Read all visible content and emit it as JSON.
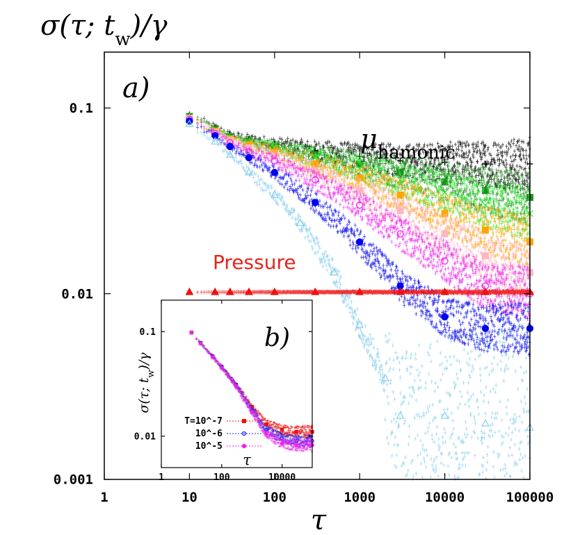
{
  "chart_data": [
    {
      "type": "scatter",
      "panel_label": "a)",
      "ylabel": "σ(τ; t_w)/γ",
      "xlabel": "τ",
      "x_scale": "log",
      "y_scale": "log",
      "xlim": [
        1,
        100000
      ],
      "ylim": [
        0.001,
        0.2
      ],
      "x_ticks": [
        1,
        10,
        100,
        1000,
        10000,
        100000
      ],
      "x_tick_labels": [
        "1",
        "10",
        "100",
        "1000",
        "10000",
        "100000"
      ],
      "y_ticks": [
        0.001,
        0.01,
        0.1
      ],
      "y_tick_labels": [
        "0.001",
        "0.01",
        "0.1"
      ],
      "annotations": [
        {
          "text_base": "μ",
          "text_sub": "hamonic",
          "color": "#000000"
        },
        {
          "text": "Pressure",
          "color": "#e8241a"
        }
      ],
      "series": [
        {
          "color": "#000000",
          "marker": "plus",
          "x": [
            10,
            20,
            30,
            50,
            100,
            300,
            1000,
            3000,
            10000,
            30000,
            100000
          ],
          "y": [
            0.092,
            0.079,
            0.072,
            0.068,
            0.064,
            0.059,
            0.055,
            0.052,
            0.051,
            0.05,
            0.05
          ]
        },
        {
          "color": "#228b22",
          "marker": "square",
          "x": [
            10,
            20,
            30,
            50,
            100,
            300,
            1000,
            3000,
            10000,
            30000,
            100000
          ],
          "y": [
            0.09,
            0.077,
            0.07,
            0.066,
            0.062,
            0.056,
            0.05,
            0.045,
            0.04,
            0.036,
            0.033
          ]
        },
        {
          "color": "#33ee33",
          "marker": "x",
          "x": [
            10,
            20,
            30,
            50,
            100,
            300,
            1000,
            3000,
            10000,
            30000,
            100000
          ],
          "y": [
            0.089,
            0.076,
            0.069,
            0.065,
            0.061,
            0.054,
            0.047,
            0.041,
            0.035,
            0.03,
            0.027
          ]
        },
        {
          "color": "#ffa500",
          "marker": "square",
          "x": [
            10,
            20,
            30,
            50,
            100,
            300,
            1000,
            3000,
            10000,
            30000,
            100000
          ],
          "y": [
            0.088,
            0.075,
            0.068,
            0.063,
            0.058,
            0.05,
            0.042,
            0.034,
            0.027,
            0.022,
            0.019
          ]
        },
        {
          "color": "#ffb6c1",
          "marker": "square",
          "x": [
            10,
            20,
            30,
            50,
            100,
            300,
            1000,
            3000,
            10000,
            30000,
            100000
          ],
          "y": [
            0.088,
            0.074,
            0.067,
            0.061,
            0.055,
            0.046,
            0.036,
            0.028,
            0.021,
            0.016,
            0.013
          ]
        },
        {
          "color": "#ee22ee",
          "marker": "circle-open",
          "x": [
            10,
            20,
            30,
            50,
            100,
            300,
            1000,
            3000,
            10000,
            30000,
            100000
          ],
          "y": [
            0.087,
            0.073,
            0.065,
            0.058,
            0.052,
            0.041,
            0.03,
            0.021,
            0.015,
            0.011,
            0.01
          ]
        },
        {
          "color": "#0000ee",
          "marker": "circle",
          "x": [
            10,
            20,
            30,
            50,
            100,
            300,
            1000,
            3000,
            10000,
            30000,
            100000
          ],
          "y": [
            0.085,
            0.071,
            0.062,
            0.054,
            0.045,
            0.031,
            0.019,
            0.011,
            0.0075,
            0.0065,
            0.0065
          ]
        },
        {
          "color": "#87ceeb",
          "marker": "triangle-open",
          "x": [
            10,
            20,
            30,
            50,
            100,
            200,
            500,
            1000,
            2000,
            3000,
            10000,
            30000,
            100000
          ],
          "y": [
            0.082,
            0.066,
            0.056,
            0.045,
            0.034,
            0.024,
            0.013,
            0.0068,
            0.0035,
            0.0022,
            0.0022,
            0.002,
            0.0019
          ]
        },
        {
          "color": "#ee1111",
          "marker": "triangle",
          "x": [
            10,
            20,
            30,
            50,
            100,
            300,
            1000,
            3000,
            10000,
            30000,
            100000
          ],
          "y": [
            0.0102,
            0.0102,
            0.0102,
            0.0102,
            0.0102,
            0.0102,
            0.0102,
            0.0102,
            0.0102,
            0.0102,
            0.0102
          ]
        }
      ]
    },
    {
      "type": "scatter",
      "panel_label": "b)",
      "ylabel": "σ(τ; t_w)/γ",
      "xlabel": "τ",
      "x_scale": "log",
      "y_scale": "log",
      "xlim": [
        1,
        100000
      ],
      "ylim": [
        0.005,
        0.2
      ],
      "x_ticks": [
        1,
        100,
        10000
      ],
      "x_tick_labels": [
        "1",
        "100",
        "10000"
      ],
      "y_ticks": [
        0.01,
        0.1
      ],
      "y_tick_labels": [
        "0.01",
        "0.1"
      ],
      "legend": "bottom-right",
      "series": [
        {
          "name": "T=10^-7",
          "color": "#ee1111",
          "marker": "square",
          "x": [
            10,
            20,
            50,
            100,
            300,
            1000,
            3000,
            10000,
            30000,
            100000
          ],
          "y": [
            0.098,
            0.078,
            0.058,
            0.046,
            0.031,
            0.019,
            0.013,
            0.0115,
            0.011,
            0.011
          ]
        },
        {
          "name": "10^-6",
          "color": "#2222ee",
          "marker": "circle-open",
          "x": [
            10,
            20,
            50,
            100,
            300,
            1000,
            3000,
            10000,
            30000,
            100000
          ],
          "y": [
            0.098,
            0.078,
            0.058,
            0.046,
            0.031,
            0.018,
            0.0115,
            0.0095,
            0.009,
            0.009
          ]
        },
        {
          "name": "10^-5",
          "color": "#ee22ee",
          "marker": "circle",
          "x": [
            10,
            20,
            50,
            100,
            300,
            1000,
            3000,
            10000,
            30000,
            100000
          ],
          "y": [
            0.098,
            0.077,
            0.057,
            0.045,
            0.03,
            0.017,
            0.0105,
            0.0085,
            0.0082,
            0.0082
          ]
        }
      ]
    }
  ]
}
